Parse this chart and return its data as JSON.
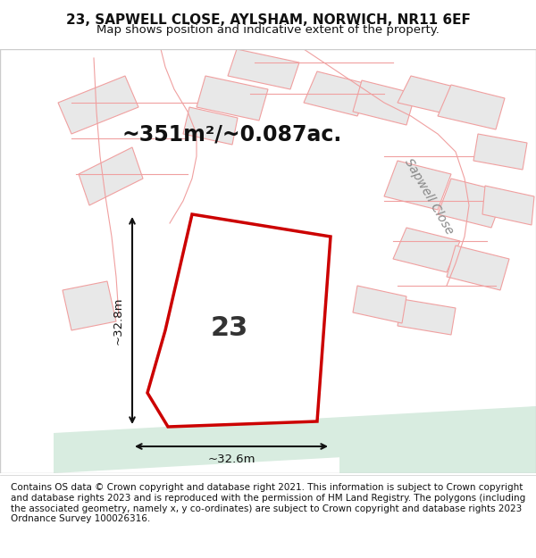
{
  "title": "23, SAPWELL CLOSE, AYLSHAM, NORWICH, NR11 6EF",
  "subtitle": "Map shows position and indicative extent of the property.",
  "footer": "Contains OS data © Crown copyright and database right 2021. This information is subject to Crown copyright and database rights 2023 and is reproduced with the permission of HM Land Registry. The polygons (including the associated geometry, namely x, y co-ordinates) are subject to Crown copyright and database rights 2023 Ordnance Survey 100026316.",
  "area_label": "~351m²/~0.087ac.",
  "label_23": "23",
  "dim_vertical": "~32.8m",
  "dim_horizontal": "~32.6m",
  "road_label": "Sapwell Close",
  "bg_color": "#ffffff",
  "map_bg": "#ffffff",
  "building_fill": "#e8e8e8",
  "building_stroke": "#f0a0a0",
  "road_fill": "#d8ece0",
  "road_stroke": "#cccccc",
  "highlight_stroke": "#cc0000",
  "highlight_fill": "#ffffff",
  "dim_color": "#111111",
  "title_fontsize": 11,
  "subtitle_fontsize": 9.5,
  "footer_fontsize": 7.5,
  "area_label_fontsize": 17,
  "label_23_fontsize": 22,
  "road_label_fontsize": 10
}
